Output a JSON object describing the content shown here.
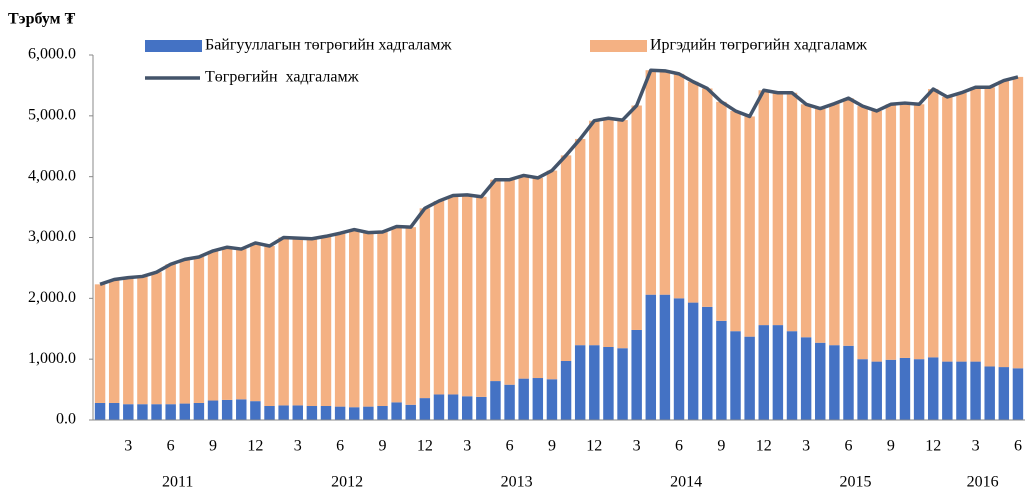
{
  "chart_data": {
    "type": "bar",
    "stacked": true,
    "y_axis_title": "Тэрбум ₮",
    "categories": [
      null,
      null,
      "3",
      null,
      null,
      "6",
      null,
      null,
      "9",
      null,
      null,
      "12",
      null,
      null,
      "3",
      null,
      null,
      "6",
      null,
      null,
      "9",
      null,
      null,
      "12",
      null,
      null,
      "3",
      null,
      null,
      "6",
      null,
      null,
      "9",
      null,
      null,
      "12",
      null,
      null,
      "3",
      null,
      null,
      "6",
      null,
      null,
      "9",
      null,
      null,
      "12",
      null,
      null,
      "3",
      null,
      null,
      "6",
      null,
      null,
      "9",
      null,
      null,
      "12",
      null,
      null,
      "3",
      null,
      null,
      "6"
    ],
    "years": [
      "2011",
      "2012",
      "2013",
      "2014",
      "2015",
      "2016"
    ],
    "ylim": [
      0,
      6000
    ],
    "yticks": [
      {
        "value": 0,
        "label": "0.0"
      },
      {
        "value": 1000,
        "label": "1,000.0"
      },
      {
        "value": 2000,
        "label": "2,000.0"
      },
      {
        "value": 3000,
        "label": "3,000.0"
      },
      {
        "value": 4000,
        "label": "4,000.0"
      },
      {
        "value": 5000,
        "label": "5,000.0"
      },
      {
        "value": 6000,
        "label": "6,000.0"
      }
    ],
    "series": [
      {
        "name": "Байгууллагын төгрөгийн хадгаламж",
        "type": "bar",
        "color": "#4472c4",
        "values": [
          280,
          280,
          260,
          260,
          260,
          260,
          270,
          280,
          320,
          330,
          340,
          310,
          230,
          240,
          240,
          230,
          230,
          220,
          210,
          220,
          230,
          290,
          250,
          360,
          420,
          420,
          390,
          380,
          640,
          580,
          680,
          690,
          670,
          970,
          1230,
          1230,
          1200,
          1180,
          1480,
          2060,
          2060,
          2000,
          1930,
          1860,
          1630,
          1460,
          1370,
          1560,
          1560,
          1460,
          1360,
          1270,
          1230,
          1220,
          1000,
          960,
          990,
          1020,
          1000,
          1030,
          960,
          960,
          960,
          880,
          870,
          850
        ]
      },
      {
        "name": "Иргэдийн төгрөгийн хадгаламж",
        "type": "bar",
        "color": "#f4b183",
        "values": [
          1950,
          2030,
          2080,
          2100,
          2170,
          2300,
          2370,
          2400,
          2460,
          2510,
          2470,
          2600,
          2630,
          2760,
          2750,
          2750,
          2790,
          2850,
          2920,
          2860,
          2860,
          2890,
          2920,
          3120,
          3180,
          3270,
          3310,
          3290,
          3310,
          3370,
          3340,
          3290,
          3430,
          3380,
          3390,
          3690,
          3760,
          3750,
          3690,
          3690,
          3680,
          3690,
          3630,
          3590,
          3600,
          3620,
          3620,
          3860,
          3820,
          3920,
          3830,
          3850,
          3970,
          4070,
          4160,
          4120,
          4200,
          4190,
          4190,
          4410,
          4350,
          4420,
          4510,
          4590,
          4710,
          4790
        ]
      },
      {
        "name": "Төгрөгийн  хадгаламж",
        "type": "line",
        "color": "#44546a",
        "values": [
          2230,
          2310,
          2340,
          2360,
          2430,
          2560,
          2640,
          2680,
          2780,
          2840,
          2810,
          2910,
          2860,
          3000,
          2990,
          2980,
          3020,
          3070,
          3130,
          3080,
          3090,
          3180,
          3170,
          3480,
          3600,
          3690,
          3700,
          3670,
          3950,
          3950,
          4020,
          3980,
          4100,
          4350,
          4620,
          4920,
          4960,
          4930,
          5170,
          5750,
          5740,
          5690,
          5560,
          5450,
          5230,
          5080,
          4990,
          5420,
          5380,
          5380,
          5190,
          5120,
          5200,
          5290,
          5160,
          5080,
          5190,
          5210,
          5190,
          5440,
          5310,
          5380,
          5470,
          5470,
          5580,
          5640
        ]
      }
    ]
  }
}
